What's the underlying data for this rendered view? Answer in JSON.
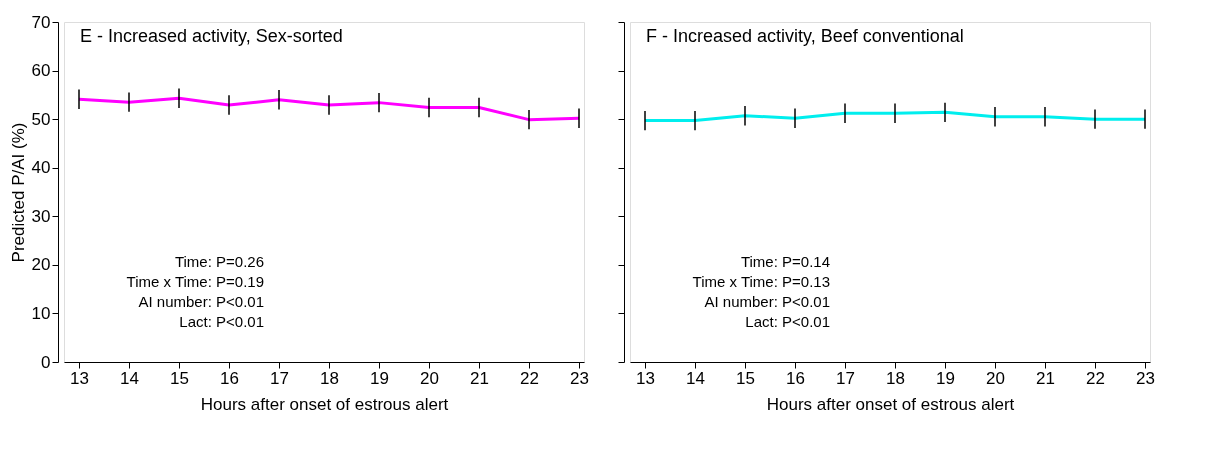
{
  "chart_data": [
    {
      "type": "line",
      "title": "E - Increased activity, Sex-sorted",
      "xlabel": "Hours after onset of estrous alert",
      "ylabel": "Predicted P/AI (%)",
      "x": [
        13,
        14,
        15,
        16,
        17,
        18,
        19,
        20,
        21,
        22,
        23
      ],
      "series": [
        {
          "color": "#ff00ff",
          "values": [
            54.1,
            53.5,
            54.3,
            52.9,
            54.0,
            52.9,
            53.4,
            52.4,
            52.4,
            49.9,
            50.2
          ],
          "errors": [
            2,
            2,
            2,
            2,
            2,
            2,
            2,
            2,
            2,
            2,
            2
          ]
        }
      ],
      "xlim": [
        12.7,
        23.1
      ],
      "xticks": [
        13,
        14,
        15,
        16,
        17,
        18,
        19,
        20,
        21,
        22,
        23
      ],
      "ylim": [
        0,
        70
      ],
      "yticks": [
        0,
        10,
        20,
        30,
        40,
        50,
        60,
        70
      ],
      "grid": false,
      "marker": "none",
      "annotations": [
        "Time: P=0.26",
        "Time x Time: P=0.19",
        "AI number: P<0.01",
        "Lact: P<0.01"
      ]
    },
    {
      "type": "line",
      "title": "F - Increased activity, Beef conventional",
      "xlabel": "Hours after onset of estrous alert",
      "x": [
        13,
        14,
        15,
        16,
        17,
        18,
        19,
        20,
        21,
        22,
        23
      ],
      "series": [
        {
          "color": "#00eeee",
          "values": [
            49.7,
            49.7,
            50.7,
            50.2,
            51.2,
            51.2,
            51.4,
            50.5,
            50.5,
            50.0,
            50.0
          ],
          "errors": [
            2,
            2,
            2,
            2,
            2,
            2,
            2,
            2,
            2,
            2,
            2
          ]
        }
      ],
      "xlim": [
        12.7,
        23.1
      ],
      "xticks": [
        13,
        14,
        15,
        16,
        17,
        18,
        19,
        20,
        21,
        22,
        23
      ],
      "ylim": [
        0,
        70
      ],
      "yticks": [
        0,
        10,
        20,
        30,
        40,
        50,
        60,
        70
      ],
      "grid": false,
      "marker": "none",
      "tick_labels": "x",
      "annotations": [
        "Time: P=0.14",
        "Time x Time: P=0.13",
        "AI number: P<0.01",
        "Lact: P<0.01"
      ]
    }
  ]
}
